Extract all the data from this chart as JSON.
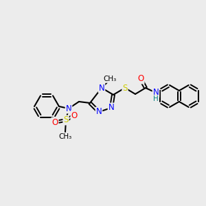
{
  "bg_color": "#ececec",
  "atom_colors": {
    "N": "#0000ff",
    "O": "#ff0000",
    "S": "#cccc00",
    "H": "#008080",
    "C": "#000000"
  },
  "font_size_atom": 8.5,
  "font_size_small": 7.5
}
